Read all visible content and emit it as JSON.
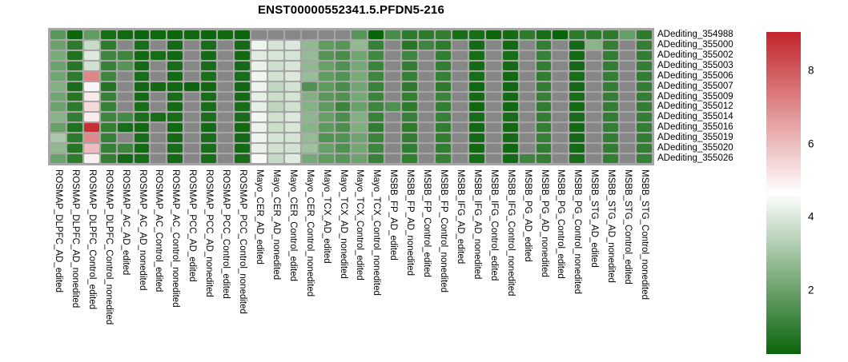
{
  "title": "ENST00000552341.5.PFDN5-216",
  "chart_data": {
    "type": "heatmap",
    "title": "ENST00000552341.5.PFDN5-216",
    "rows": [
      "ADediting_354988",
      "ADediting_355000",
      "ADediting_355002",
      "ADediting_355003",
      "ADediting_355006",
      "ADediting_355007",
      "ADediting_355009",
      "ADediting_355012",
      "ADediting_355014",
      "ADediting_355016",
      "ADediting_355019",
      "ADediting_355020",
      "ADediting_355026"
    ],
    "columns": [
      "ROSMAP_DLPFC_AD_edited",
      "ROSMAP_DLPFC_AD_nonedited",
      "ROSMAP_DLPFC_Control_edited",
      "ROSMAP_DLPFC_Control_nonedited",
      "ROSMAP_AC_AD_edited",
      "ROSMAP_AC_AD_nonedited",
      "ROSMAP_AC_Control_edited",
      "ROSMAP_AC_Control_nonedited",
      "ROSMAP_PCC_AD_edited",
      "ROSMAP_PCC_AD_nonedited",
      "ROSMAP_PCC_Control_edited",
      "ROSMAP_PCC_Control_nonedited",
      "Mayo_CER_AD_edited",
      "Mayo_CER_AD_nonedited",
      "Mayo_CER_Control_edited",
      "Mayo_CER_Control_nonedited",
      "Mayo_TCX_AD_edited",
      "Mayo_TCX_AD_nonedited",
      "Mayo_TCX_Control_edited",
      "Mayo_TCX_Control_nonedited",
      "MSBB_FP_AD_edited",
      "MSBB_FP_AD_nonedited",
      "MSBB_FP_Control_edited",
      "MSBB_FP_Control_nonedited",
      "MSBB_IFG_AD_edited",
      "MSBB_IFG_AD_nonedited",
      "MSBB_IFG_Control_edited",
      "MSBB_IFG_Control_nonedited",
      "MSBB_PG_AD_edited",
      "MSBB_PG_AD_nonedited",
      "MSBB_PG_Control_edited",
      "MSBB_PG_Control_nonedited",
      "MSBB_STG_AD_edited",
      "MSBB_STG_AD_nonedited",
      "MSBB_STG_Control_edited",
      "MSBB_STG_Control_nonedited"
    ],
    "values": [
      [
        1.7,
        0.3,
        1.8,
        0.5,
        0.4,
        0.3,
        0.35,
        0.3,
        0.35,
        0.3,
        0.4,
        0.3,
        null,
        null,
        null,
        null,
        null,
        null,
        1.65,
        0.25,
        1.4,
        0.9,
        0.9,
        1.0,
        0.5,
        0.5,
        0.3,
        0.45,
        0.9,
        0.5,
        0.25,
        0.9,
        0.9,
        0.9,
        1.9,
        0.9
      ],
      [
        2.0,
        0.9,
        3.65,
        0.9,
        null,
        0.5,
        null,
        0.45,
        null,
        0.5,
        null,
        0.45,
        4.35,
        3.9,
        4.0,
        2.7,
        1.8,
        1.65,
        2.7,
        1.05,
        null,
        0.75,
        1.2,
        0.9,
        null,
        0.45,
        null,
        0.4,
        null,
        1.0,
        null,
        0.45,
        2.55,
        1.0,
        null,
        1.0
      ],
      [
        2.25,
        0.65,
        4.0,
        1.2,
        1.2,
        0.4,
        0.5,
        0.4,
        null,
        0.45,
        null,
        0.4,
        4.1,
        3.95,
        3.9,
        2.75,
        1.6,
        1.4,
        2.1,
        1.25,
        null,
        1.2,
        null,
        1.0,
        null,
        0.5,
        null,
        0.5,
        null,
        1.05,
        null,
        0.45,
        null,
        0.95,
        null,
        0.95
      ],
      [
        2.0,
        0.75,
        3.8,
        1.05,
        1.6,
        0.45,
        null,
        0.5,
        null,
        0.5,
        null,
        0.45,
        4.25,
        3.75,
        3.95,
        2.65,
        1.95,
        1.5,
        2.2,
        1.15,
        null,
        1.0,
        null,
        1.0,
        null,
        0.45,
        null,
        0.45,
        null,
        1.0,
        null,
        0.45,
        null,
        1.0,
        null,
        1.0
      ],
      [
        2.1,
        0.9,
        7.1,
        1.2,
        null,
        0.5,
        null,
        0.45,
        null,
        0.55,
        null,
        0.5,
        4.4,
        3.85,
        4.0,
        2.8,
        1.8,
        1.55,
        2.25,
        1.2,
        null,
        1.05,
        null,
        1.05,
        null,
        0.5,
        null,
        0.4,
        null,
        0.95,
        null,
        0.5,
        null,
        1.0,
        null,
        0.95
      ],
      [
        2.4,
        0.5,
        4.85,
        0.7,
        null,
        0.35,
        0.4,
        0.35,
        0.3,
        0.4,
        null,
        0.35,
        4.35,
        3.5,
        3.85,
        1.5,
        1.75,
        1.4,
        2.1,
        1.1,
        null,
        0.9,
        null,
        0.9,
        null,
        0.35,
        null,
        0.35,
        null,
        1.0,
        null,
        0.45,
        null,
        0.95,
        null,
        1.0
      ],
      [
        2.1,
        0.75,
        5.1,
        1.05,
        null,
        0.45,
        null,
        0.5,
        null,
        0.5,
        null,
        0.45,
        4.2,
        3.7,
        3.9,
        2.4,
        1.7,
        1.5,
        2.2,
        1.15,
        null,
        1.0,
        null,
        1.15,
        null,
        0.45,
        null,
        0.45,
        null,
        1.05,
        null,
        0.5,
        null,
        1.0,
        null,
        1.0
      ],
      [
        2.0,
        0.9,
        5.4,
        1.05,
        null,
        0.5,
        null,
        0.45,
        null,
        0.5,
        null,
        0.5,
        4.2,
        3.45,
        3.8,
        2.45,
        1.75,
        1.15,
        1.95,
        1.2,
        1.5,
        0.9,
        null,
        1.0,
        null,
        0.35,
        null,
        0.4,
        null,
        0.95,
        null,
        0.45,
        null,
        1.0,
        null,
        0.95
      ],
      [
        2.5,
        1.0,
        5.05,
        1.2,
        1.3,
        0.55,
        0.5,
        0.5,
        null,
        0.55,
        null,
        0.5,
        4.4,
        3.8,
        4.0,
        2.6,
        1.9,
        1.45,
        2.4,
        1.1,
        null,
        1.05,
        null,
        1.05,
        null,
        0.5,
        null,
        0.5,
        null,
        1.0,
        null,
        0.5,
        null,
        0.95,
        null,
        1.0
      ],
      [
        1.95,
        0.65,
        8.85,
        1.0,
        0.5,
        0.4,
        null,
        0.4,
        null,
        0.45,
        null,
        0.4,
        4.3,
        3.7,
        3.95,
        2.5,
        1.75,
        1.45,
        2.35,
        0.95,
        null,
        0.9,
        null,
        0.95,
        null,
        0.4,
        null,
        0.4,
        null,
        1.0,
        null,
        0.45,
        null,
        1.0,
        null,
        1.0
      ],
      [
        3.1,
        0.9,
        7.0,
        1.05,
        null,
        0.5,
        null,
        0.45,
        null,
        0.5,
        null,
        0.45,
        4.35,
        3.9,
        3.9,
        2.75,
        1.55,
        1.55,
        2.05,
        1.15,
        null,
        1.0,
        null,
        1.0,
        null,
        0.45,
        null,
        0.45,
        null,
        1.05,
        null,
        0.45,
        null,
        1.0,
        null,
        0.95
      ],
      [
        2.7,
        0.75,
        6.0,
        1.05,
        1.2,
        0.45,
        null,
        0.5,
        null,
        0.5,
        null,
        0.45,
        4.25,
        3.8,
        3.85,
        2.9,
        1.95,
        1.5,
        2.15,
        1.2,
        null,
        0.95,
        null,
        1.0,
        null,
        0.4,
        null,
        0.35,
        null,
        0.95,
        null,
        0.45,
        null,
        0.95,
        null,
        1.0
      ],
      [
        2.0,
        0.9,
        4.95,
        1.0,
        0.45,
        0.5,
        null,
        0.45,
        null,
        0.5,
        null,
        0.5,
        4.5,
        3.6,
        4.1,
        2.2,
        1.8,
        1.65,
        2.05,
        1.1,
        null,
        1.0,
        null,
        1.05,
        null,
        0.5,
        null,
        0.45,
        1.2,
        1.0,
        null,
        0.5,
        null,
        1.0,
        null,
        1.05
      ]
    ],
    "scale": {
      "min": 0.25,
      "max": 9.05
    },
    "colorbar_ticks": [
      8,
      6,
      4,
      2
    ],
    "legend_position": "right",
    "colors": {
      "low": "#0a640a",
      "mid": "#ffffff",
      "high": "#c3252a",
      "na": "#878787",
      "lattice": "#a6a6a6"
    }
  }
}
